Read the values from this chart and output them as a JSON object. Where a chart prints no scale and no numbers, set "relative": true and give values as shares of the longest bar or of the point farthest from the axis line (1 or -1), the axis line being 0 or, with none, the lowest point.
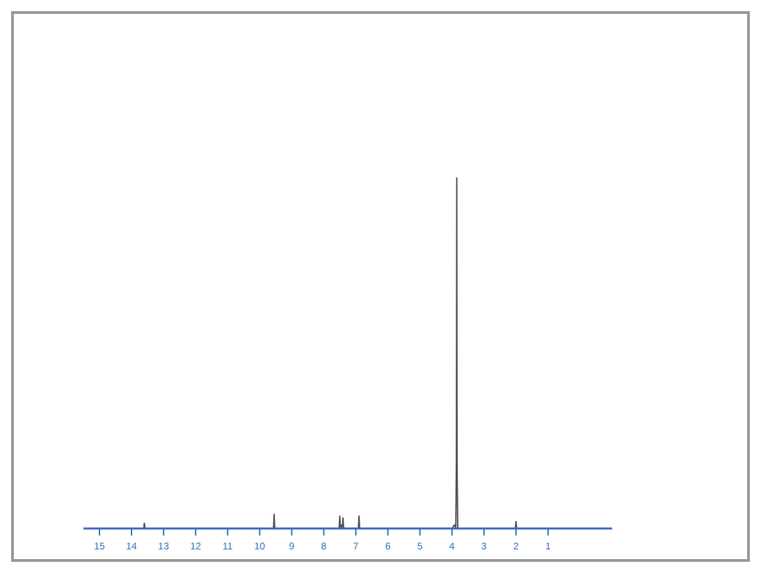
{
  "chart_data": {
    "type": "line",
    "relative": true,
    "color": "#555555",
    "x": [
      15.5,
      13.7,
      13.62,
      13.6,
      13.58,
      13.5,
      9.65,
      9.57,
      9.55,
      9.53,
      9.45,
      7.6,
      7.52,
      7.5,
      7.48,
      7.45,
      7.42,
      7.4,
      7.38,
      7.3,
      7.0,
      6.92,
      6.9,
      6.88,
      6.8,
      4.0,
      3.92,
      3.88,
      3.86,
      3.85,
      3.84,
      3.82,
      3.78,
      2.1,
      2.02,
      2.0,
      1.98,
      1.9,
      -1
    ],
    "values": [
      0,
      0,
      0,
      0.015,
      0,
      0,
      0,
      0,
      0.04,
      0,
      0,
      0,
      0,
      0.035,
      0,
      0.01,
      0,
      0.03,
      0,
      0,
      0,
      0,
      0.035,
      0,
      0,
      0,
      0.01,
      0,
      0.2,
      1,
      0.2,
      0,
      0,
      0,
      0,
      0.02,
      0,
      0,
      0
    ],
    "xlim": [
      15.5,
      -1
    ],
    "xticks": [
      15,
      14,
      13,
      12,
      11,
      10,
      9,
      8,
      7,
      6,
      5,
      4,
      3,
      2,
      1
    ]
  }
}
